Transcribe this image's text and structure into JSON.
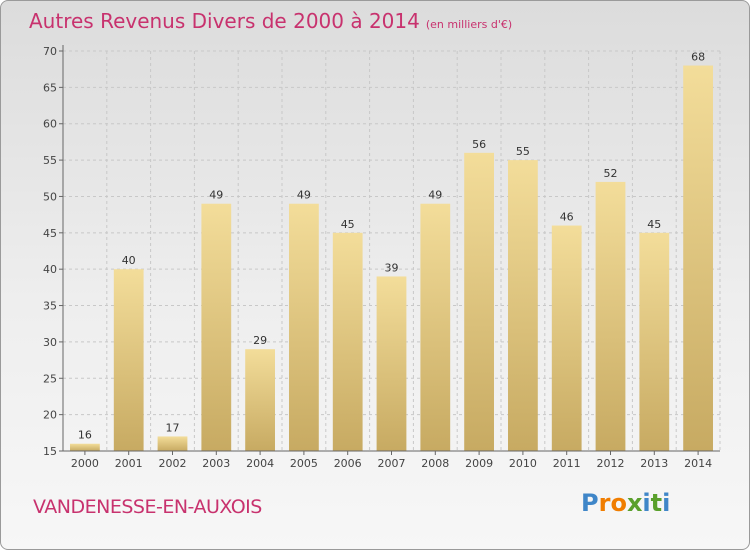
{
  "title": "Autres Revenus Divers de 2000 à 2014",
  "unit": "(en milliers d'€)",
  "town": "VANDENESSE-EN-AUXOIS",
  "logo": {
    "text": "Proxiti",
    "letters": [
      "P",
      "r",
      "o",
      "x",
      "i",
      "t",
      "i"
    ],
    "colors": [
      "#3f86c8",
      "#f07d00",
      "#f07d00",
      "#5aa02c",
      "#3f86c8",
      "#5aa02c",
      "#3f86c8"
    ]
  },
  "colors": {
    "title": "#c8326e",
    "bar_light": "#f3dd9a",
    "bar_dark": "#c7aa62",
    "grid": "#c8c8c8"
  },
  "chart_data": {
    "type": "bar",
    "title": "Autres Revenus Divers de 2000 à 2014",
    "ylabel": "en milliers d'€",
    "xlabel": "",
    "categories": [
      "2000",
      "2001",
      "2002",
      "2003",
      "2004",
      "2005",
      "2006",
      "2007",
      "2008",
      "2009",
      "2010",
      "2011",
      "2012",
      "2013",
      "2014"
    ],
    "values": [
      16,
      40,
      17,
      49,
      29,
      49,
      45,
      39,
      49,
      56,
      55,
      46,
      52,
      45,
      68
    ],
    "ylim": [
      15,
      70
    ],
    "yticks": [
      15,
      20,
      25,
      30,
      35,
      40,
      45,
      50,
      55,
      60,
      65,
      70
    ],
    "grid": true
  }
}
